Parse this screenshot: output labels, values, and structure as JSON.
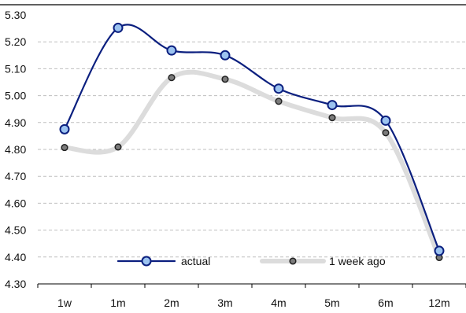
{
  "chart_data": {
    "type": "line",
    "categories": [
      "1w",
      "1m",
      "2m",
      "3m",
      "4m",
      "5m",
      "6m",
      "12m"
    ],
    "series": [
      {
        "name": "actual",
        "values": [
          4.875,
          5.252,
          5.168,
          5.15,
          5.026,
          4.965,
          4.907,
          4.423
        ],
        "line_color": "#0b1f7f",
        "marker_fill": "#9cc3f0",
        "marker_stroke": "#0b1f7f"
      },
      {
        "name": "1 week ago",
        "values": [
          4.807,
          4.809,
          5.067,
          5.061,
          4.979,
          4.918,
          4.862,
          4.398
        ],
        "line_color": "#dcdcdc",
        "marker_fill": "#7b7b7b",
        "marker_stroke": "#222222"
      }
    ],
    "y_ticks": [
      "5.30",
      "5.20",
      "5.10",
      "5.00",
      "4.90",
      "4.80",
      "4.70",
      "4.60",
      "4.50",
      "4.40",
      "4.30"
    ],
    "ylim": [
      4.3,
      5.3
    ],
    "grid": true,
    "legend_position": "bottom-center",
    "title": "",
    "xlabel": "",
    "ylabel": ""
  },
  "colors": {
    "axis": "#000000",
    "grid": "#bfbfbf"
  }
}
